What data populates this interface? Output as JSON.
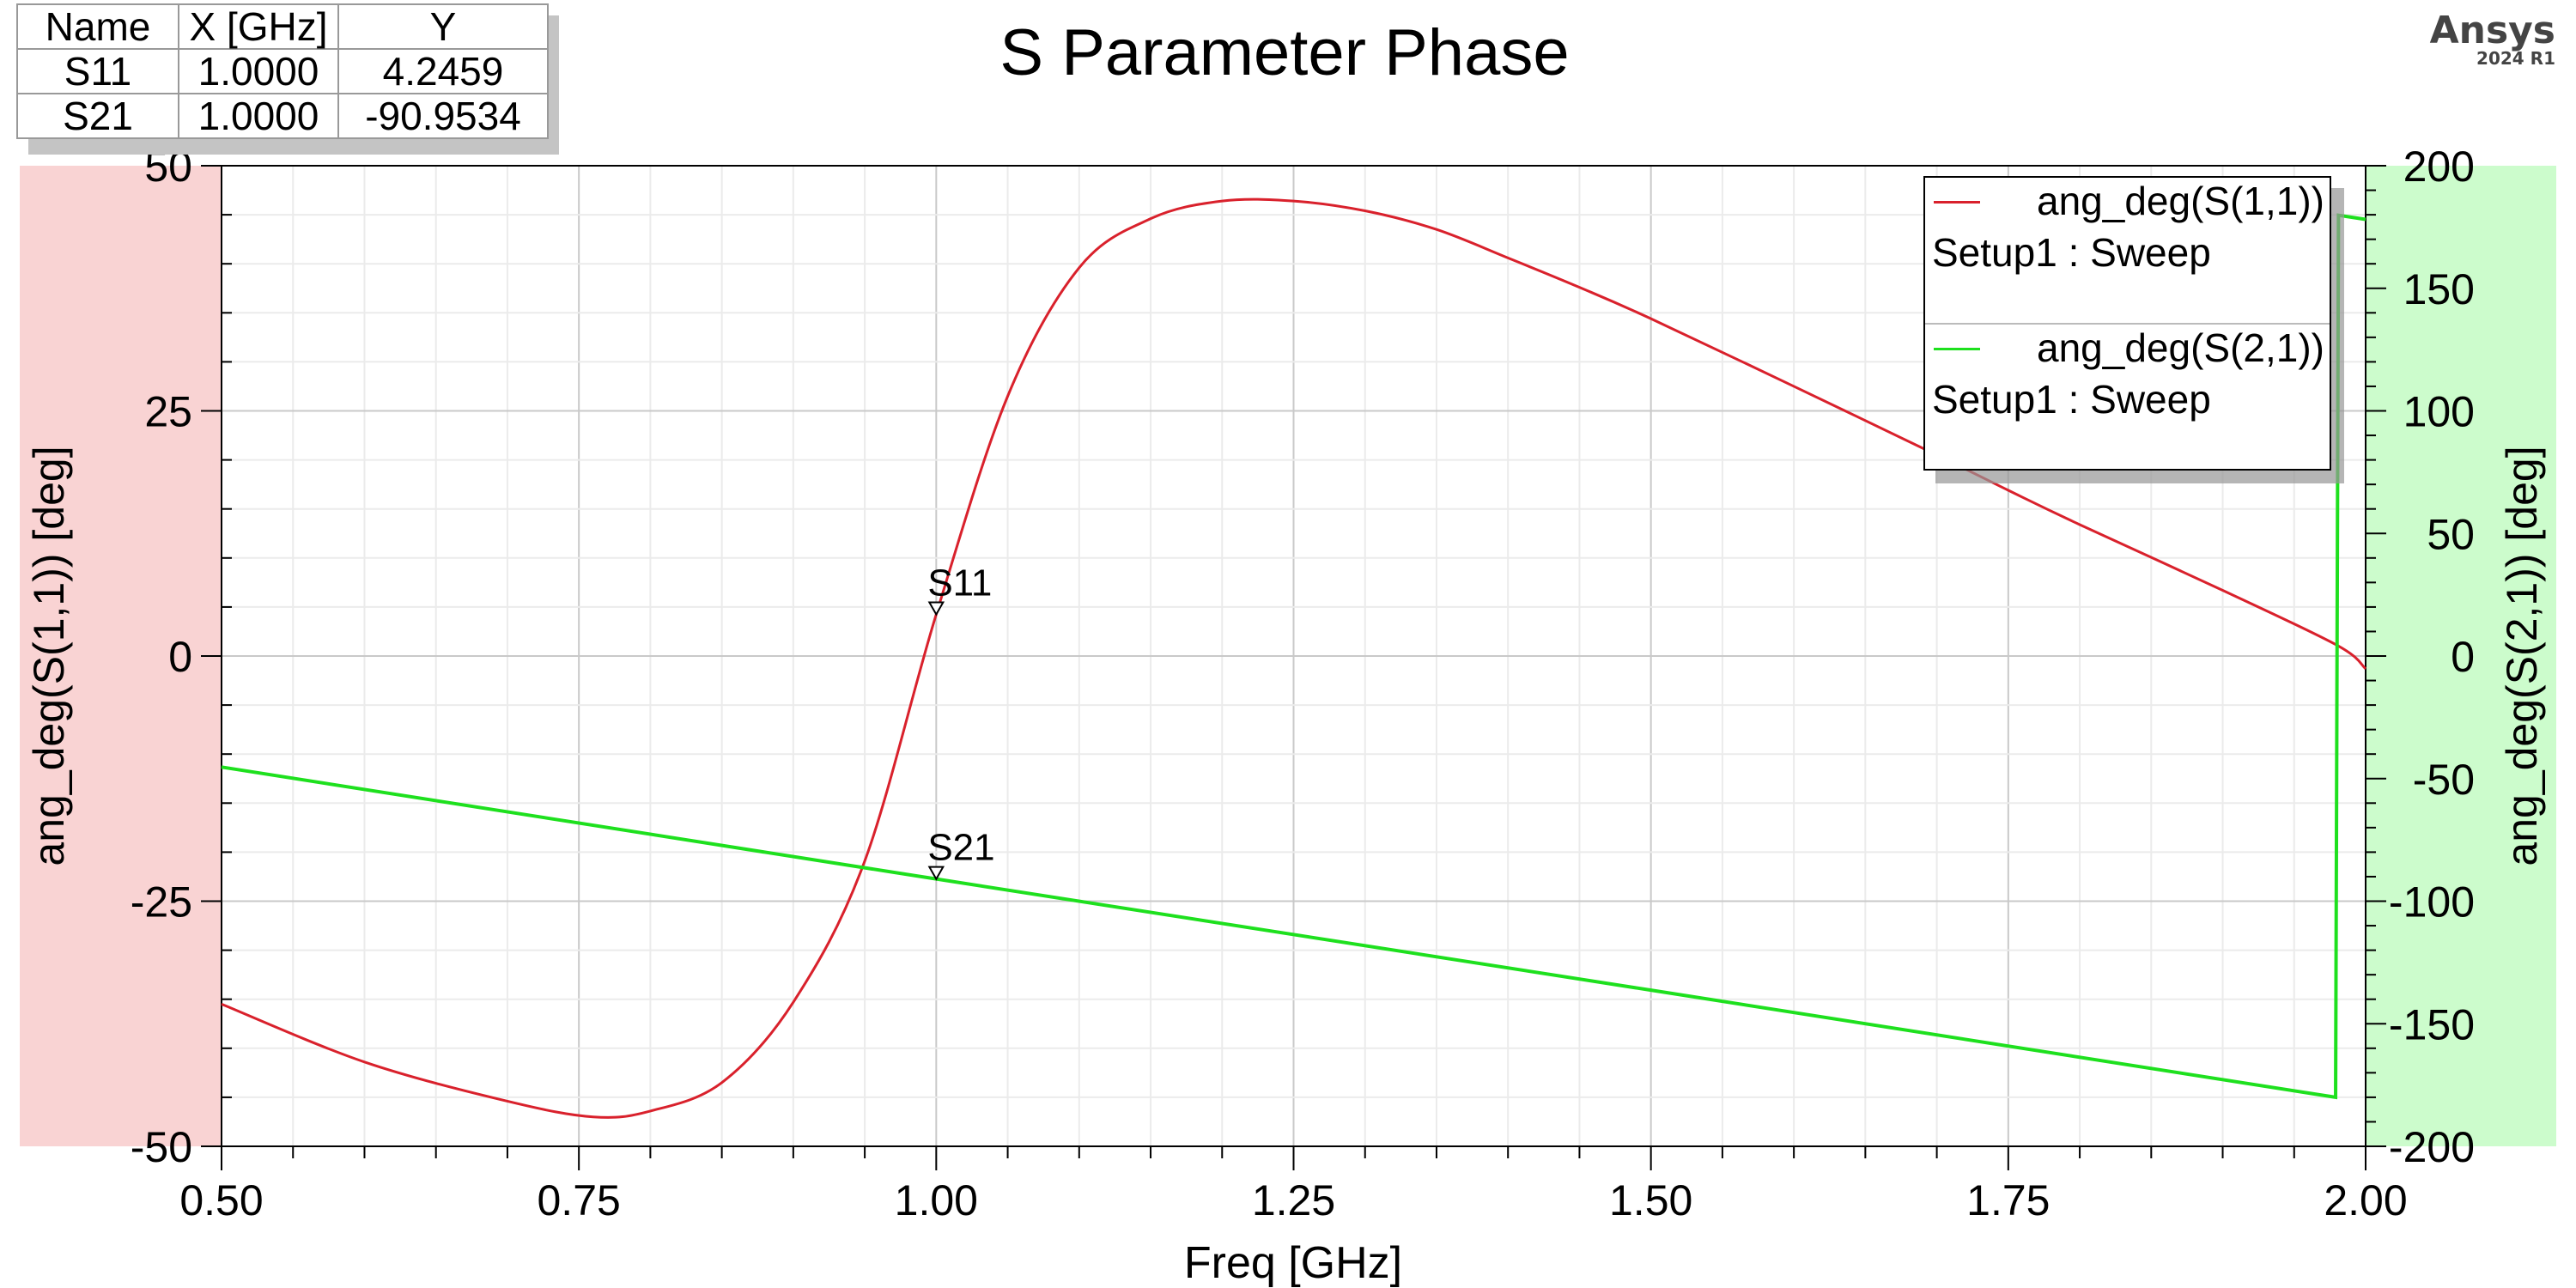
{
  "title": "S Parameter Phase",
  "logo": {
    "brand": "Ansys",
    "version": "2024 R1"
  },
  "marker_table": {
    "headers": [
      "Name",
      "X [GHz]",
      "Y"
    ],
    "rows": [
      [
        "S11",
        "1.0000",
        "4.2459"
      ],
      [
        "S21",
        "1.0000",
        "-90.9534"
      ]
    ]
  },
  "legend": [
    {
      "name": "ang_deg(S(1,1))",
      "setup": "Setup1 : Sweep",
      "color": "#d9212c"
    },
    {
      "name": "ang_deg(S(2,1))",
      "setup": "Setup1 : Sweep",
      "color": "#1ee01e"
    }
  ],
  "chart_data": {
    "type": "line",
    "title": "S Parameter Phase",
    "xlabel": "Freq [GHz]",
    "ylabel": "ang_deg(S(1,1)) [deg]",
    "y2label": "ang_deg(S(2,1)) [deg]",
    "xlim": [
      0.5,
      2.0
    ],
    "ylim": [
      -50,
      50
    ],
    "y2lim": [
      -200,
      200
    ],
    "xticks": [
      "0.50",
      "0.75",
      "1.00",
      "1.25",
      "1.50",
      "1.75",
      "2.00"
    ],
    "yticks": [
      "-50",
      "-25",
      "0",
      "25",
      "50"
    ],
    "y2ticks": [
      "-200",
      "-150",
      "-100",
      "-50",
      "0",
      "50",
      "100",
      "150",
      "200"
    ],
    "grid": true,
    "legend_position": "top-right",
    "left_axis_band_color": "#f9d3d3",
    "right_axis_band_color": "#ccfccc",
    "series": [
      {
        "name": "ang_deg(S(1,1))",
        "axis": "left",
        "color": "#d9212c",
        "x": [
          0.5,
          0.6,
          0.7,
          0.76,
          0.8,
          0.85,
          0.9,
          0.95,
          1.0,
          1.05,
          1.1,
          1.15,
          1.2,
          1.25,
          1.3,
          1.35,
          1.4,
          1.45,
          1.5,
          1.6,
          1.7,
          1.75,
          1.8,
          1.9,
          1.98,
          2.0
        ],
        "y": [
          -35.5,
          -41.4,
          -45.4,
          -47.0,
          -46.4,
          -43.5,
          -35.3,
          -20.9,
          4.25,
          26.5,
          39.6,
          44.6,
          46.4,
          46.4,
          45.4,
          43.5,
          40.6,
          37.6,
          34.4,
          27.5,
          20.5,
          16.9,
          13.4,
          6.7,
          1.1,
          -1.3
        ]
      },
      {
        "name": "ang_deg(S(2,1))",
        "axis": "right",
        "color": "#1ee01e",
        "x": [
          0.5,
          1.0,
          1.5,
          1.979,
          1.981,
          2.0
        ],
        "y": [
          -45.3,
          -90.95,
          -136.3,
          -180.0,
          179.8,
          178.1
        ]
      }
    ],
    "markers": [
      {
        "label": "S11",
        "series": 0,
        "x": 1.0,
        "y": 4.2459
      },
      {
        "label": "S21",
        "series": 1,
        "x": 1.0,
        "y": -90.9534
      }
    ]
  }
}
